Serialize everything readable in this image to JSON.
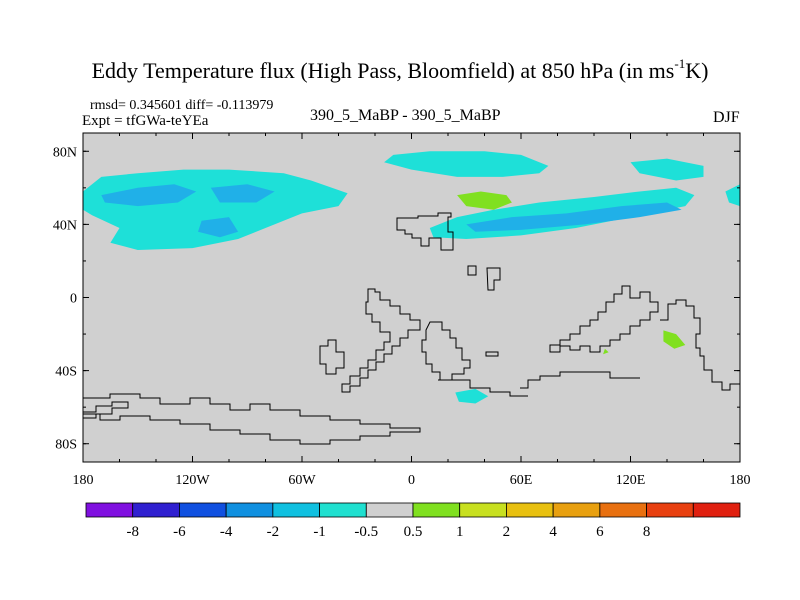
{
  "title_main": "Eddy Temperature flux (High Pass, Bloomfield) at 850 hPa (in ms",
  "title_sup": "-1",
  "title_end": "K)",
  "stats": "rmsd= 0.345601 diff= -0.113979",
  "expt": "Expt = tfGWa-teYEa",
  "center_label": "390_5_MaBP - 390_5_MaBP",
  "season": "DJF",
  "colors": {
    "land_fill": "#d0d0d0",
    "coastline": "#000000",
    "cyan_light": "#1ee0d8",
    "blue_mid": "#20b0e8",
    "green": "#80e020"
  },
  "chart_data": {
    "type": "heatmap",
    "title": "Eddy Temperature flux (High Pass, Bloomfield) at 850 hPa (in ms-1K)",
    "xlabel": "",
    "ylabel": "",
    "xlim": [
      -180,
      180
    ],
    "ylim": [
      -90,
      90
    ],
    "x_ticks": [
      {
        "value": -180,
        "label": "180"
      },
      {
        "value": -120,
        "label": "120W"
      },
      {
        "value": -60,
        "label": "60W"
      },
      {
        "value": 0,
        "label": "0"
      },
      {
        "value": 60,
        "label": "60E"
      },
      {
        "value": 120,
        "label": "120E"
      },
      {
        "value": 180,
        "label": "180"
      }
    ],
    "y_ticks": [
      {
        "value": 80,
        "label": "80N"
      },
      {
        "value": 40,
        "label": "40N"
      },
      {
        "value": 0,
        "label": "0"
      },
      {
        "value": -40,
        "label": "40S"
      },
      {
        "value": -80,
        "label": "80S"
      }
    ],
    "colorbar": {
      "colors": [
        "#8010e0",
        "#3020d0",
        "#1050e0",
        "#1090e0",
        "#10c0e0",
        "#20e0d0",
        "#d0d0d0",
        "#80e020",
        "#c8e020",
        "#e8c010",
        "#e8a010",
        "#e87010",
        "#e84010",
        "#e02010"
      ],
      "labels": [
        "-8",
        "-6",
        "-4",
        "-2",
        "-1",
        "-0.5",
        "0.5",
        "1",
        "2",
        "4",
        "6",
        "8"
      ]
    },
    "regions": [
      {
        "name": "north-pacific-atlantic-band",
        "level": "-0.5",
        "points": [
          [
            -180,
            58
          ],
          [
            -170,
            66
          ],
          [
            -150,
            68
          ],
          [
            -125,
            70
          ],
          [
            -100,
            70
          ],
          [
            -70,
            68
          ],
          [
            -55,
            64
          ],
          [
            -35,
            57
          ],
          [
            -40,
            50
          ],
          [
            -60,
            46
          ],
          [
            -80,
            38
          ],
          [
            -95,
            32
          ],
          [
            -120,
            27
          ],
          [
            -150,
            26
          ],
          [
            -165,
            30
          ],
          [
            -160,
            38
          ],
          [
            -175,
            45
          ],
          [
            -180,
            48
          ]
        ]
      },
      {
        "name": "pacific-core-1",
        "level": "-1",
        "points": [
          [
            -170,
            56
          ],
          [
            -150,
            60
          ],
          [
            -130,
            62
          ],
          [
            -118,
            58
          ],
          [
            -128,
            52
          ],
          [
            -150,
            50
          ],
          [
            -168,
            52
          ]
        ]
      },
      {
        "name": "pacific-core-2",
        "level": "-1",
        "points": [
          [
            -110,
            60
          ],
          [
            -90,
            62
          ],
          [
            -75,
            58
          ],
          [
            -85,
            52
          ],
          [
            -105,
            52
          ]
        ]
      },
      {
        "name": "pacific-core-3",
        "level": "-1",
        "points": [
          [
            -115,
            42
          ],
          [
            -100,
            44
          ],
          [
            -95,
            36
          ],
          [
            -105,
            33
          ],
          [
            -117,
            36
          ]
        ]
      },
      {
        "name": "arctic-band",
        "level": "-0.5",
        "points": [
          [
            -10,
            78
          ],
          [
            10,
            80
          ],
          [
            40,
            80
          ],
          [
            60,
            78
          ],
          [
            75,
            72
          ],
          [
            70,
            68
          ],
          [
            50,
            66
          ],
          [
            25,
            66
          ],
          [
            0,
            70
          ],
          [
            -15,
            74
          ]
        ]
      },
      {
        "name": "eurasia-band",
        "level": "-0.5",
        "points": [
          [
            10,
            38
          ],
          [
            25,
            44
          ],
          [
            45,
            48
          ],
          [
            70,
            52
          ],
          [
            100,
            55
          ],
          [
            125,
            58
          ],
          [
            145,
            60
          ],
          [
            155,
            56
          ],
          [
            150,
            50
          ],
          [
            130,
            46
          ],
          [
            110,
            42
          ],
          [
            90,
            38
          ],
          [
            60,
            34
          ],
          [
            30,
            32
          ],
          [
            12,
            33
          ]
        ]
      },
      {
        "name": "eurasia-core",
        "level": "-1",
        "points": [
          [
            30,
            40
          ],
          [
            55,
            44
          ],
          [
            85,
            46
          ],
          [
            115,
            50
          ],
          [
            140,
            52
          ],
          [
            148,
            48
          ],
          [
            125,
            44
          ],
          [
            95,
            40
          ],
          [
            60,
            37
          ],
          [
            35,
            36
          ]
        ]
      },
      {
        "name": "siberia-patch",
        "level": "-0.5",
        "points": [
          [
            120,
            74
          ],
          [
            140,
            76
          ],
          [
            160,
            72
          ],
          [
            160,
            66
          ],
          [
            145,
            64
          ],
          [
            125,
            68
          ]
        ]
      },
      {
        "name": "dateline-patch",
        "level": "-0.5",
        "points": [
          [
            172,
            58
          ],
          [
            180,
            62
          ],
          [
            180,
            50
          ],
          [
            174,
            52
          ]
        ]
      },
      {
        "name": "southern-patch",
        "level": "-0.5",
        "points": [
          [
            24,
            -52
          ],
          [
            35,
            -50
          ],
          [
            42,
            -54
          ],
          [
            35,
            -58
          ],
          [
            26,
            -57
          ]
        ]
      },
      {
        "name": "asia-positive",
        "level": "0.5",
        "points": [
          [
            25,
            56
          ],
          [
            38,
            58
          ],
          [
            52,
            56
          ],
          [
            55,
            52
          ],
          [
            45,
            48
          ],
          [
            30,
            50
          ]
        ]
      },
      {
        "name": "australia-positive",
        "level": "0.5",
        "points": [
          [
            138,
            -18
          ],
          [
            145,
            -20
          ],
          [
            150,
            -26
          ],
          [
            144,
            -28
          ],
          [
            138,
            -24
          ]
        ]
      },
      {
        "name": "indian-ocean-dot",
        "level": "0.5",
        "points": [
          [
            106,
            -28
          ],
          [
            108,
            -30
          ],
          [
            105,
            -31
          ]
        ]
      }
    ]
  }
}
